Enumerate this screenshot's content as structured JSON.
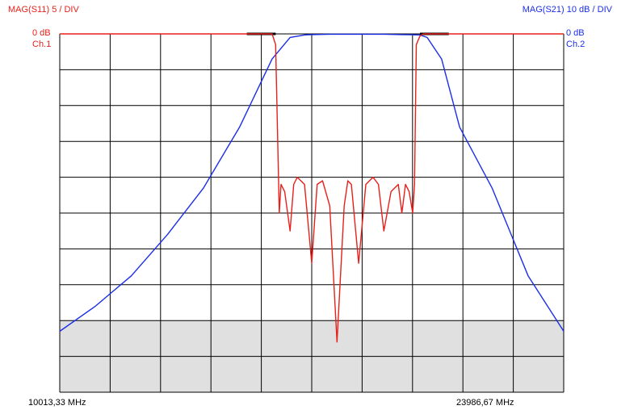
{
  "header": {
    "ch1_scale": "MAG(S11) 5  / DIV",
    "ch2_scale": "MAG(S21) 10 dB / DIV",
    "ch1_ref": "0 dB",
    "ch1_name": "Ch.1",
    "ch2_ref": "0 dB",
    "ch2_name": "Ch.2"
  },
  "footer": {
    "start_freq": "10013,33 MHz",
    "stop_freq": "23986,67 MHz"
  },
  "colors": {
    "s11": "#e8201a",
    "s21": "#1a2ee8",
    "grid": "#000000",
    "shade": "#e0e0e0"
  },
  "chart_data": {
    "type": "line",
    "x_unit": "MHz",
    "xlim": [
      10013.33,
      23986.67
    ],
    "x_divisions": 10,
    "y_divisions": 10,
    "shaded_band": "bottom 2 divisions",
    "grid": true,
    "series": [
      {
        "name": "MAG(S21)",
        "channel": "Ch.2",
        "ref": "0 dB",
        "div": "10 dB",
        "color": "#1a2ee8",
        "x": [
          10013.33,
          11000,
          12000,
          13000,
          14000,
          15000,
          15900,
          16400,
          16800,
          17000,
          17500,
          18000,
          18500,
          19000,
          19500,
          20000,
          20200,
          20600,
          21100,
          22000,
          23000,
          23986.67
        ],
        "y": [
          -83,
          -76,
          -67.5,
          -56,
          -43,
          -26,
          -7,
          -1,
          -0.3,
          -0.2,
          -0.1,
          -0.1,
          -0.1,
          -0.1,
          -0.2,
          -0.3,
          -1,
          -7,
          -26,
          -43,
          -67.5,
          -83
        ]
      },
      {
        "name": "MAG(S11)",
        "channel": "Ch.1",
        "ref": "0 dB",
        "div": "5",
        "color": "#e8201a",
        "x": [
          10013.33,
          15900,
          16000,
          16100,
          16150,
          16250,
          16400,
          16500,
          16600,
          16800,
          17000,
          17150,
          17300,
          17500,
          17700,
          17900,
          18000,
          18100,
          18300,
          18500,
          18700,
          18850,
          19000,
          19200,
          19400,
          19500,
          19600,
          19700,
          19800,
          19850,
          19900,
          20000,
          20100,
          23986.67
        ],
        "y": [
          0,
          0,
          -1.5,
          -25,
          -21,
          -22,
          -27.5,
          -21,
          -20,
          -21,
          -32,
          -21,
          -20.5,
          -24,
          -43,
          -24,
          -20.5,
          -21,
          -32,
          -21,
          -20,
          -21,
          -27.5,
          -22,
          -21,
          -25,
          -21,
          -22,
          -25,
          -21,
          -1.5,
          -0.3,
          0,
          0
        ]
      }
    ],
    "stopband_markers": [
      {
        "x": [
          15200,
          16000
        ],
        "y": 0
      },
      {
        "x": [
          20000,
          20800
        ],
        "y": 0
      }
    ]
  }
}
